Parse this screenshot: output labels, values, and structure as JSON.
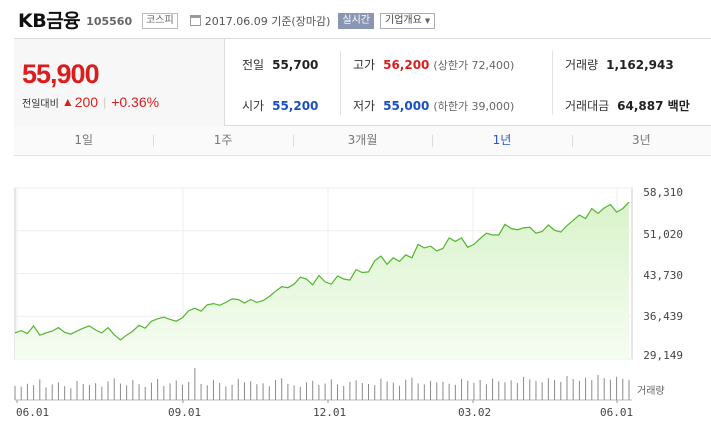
{
  "header": {
    "name": "KB금융",
    "code": "105560",
    "market": "코스피",
    "date": "2017.06.09 기준(장마감)",
    "realtime_btn": "실시간",
    "company_btn": "기업개요"
  },
  "price": {
    "current": "55,900",
    "change_label": "전일대비",
    "change": "200",
    "change_pct": "+0.36%"
  },
  "stats": {
    "prev_close_label": "전일",
    "prev_close": "55,700",
    "high_label": "고가",
    "high": "56,200",
    "upper_limit": "(상한가 72,400)",
    "volume_label": "거래량",
    "volume": "1,162,943",
    "open_label": "시가",
    "open": "55,200",
    "low_label": "저가",
    "low": "55,000",
    "lower_limit": "(하한가 39,000)",
    "amount_label": "거래대금",
    "amount": "64,887 백만"
  },
  "tabs": [
    {
      "label": "1일",
      "active": false
    },
    {
      "label": "1주",
      "active": false
    },
    {
      "label": "3개월",
      "active": false
    },
    {
      "label": "1년",
      "active": true
    },
    {
      "label": "3년",
      "active": false
    }
  ],
  "chart_data": {
    "type": "area",
    "yticks": [
      "58,310",
      "51,020",
      "43,730",
      "36,439",
      "29,149"
    ],
    "ylim": [
      29149,
      58310
    ],
    "xticks": [
      "06.01",
      "09.01",
      "12.01",
      "03.02",
      "06.01"
    ],
    "volume_label": "거래량",
    "line_color": "#52b52d",
    "fill_color": "#e5f7dc",
    "series": [
      {
        "values": [
          33600,
          34000,
          33500,
          34800,
          33200,
          33600,
          33900,
          34500,
          33700,
          33400,
          33900,
          34400,
          34800,
          34100,
          33600,
          34500,
          33300,
          32400,
          33200,
          33900,
          34900,
          34400,
          35600,
          36000,
          36300,
          35900,
          35600,
          36200,
          37400,
          37800,
          37300,
          38400,
          38600,
          38300,
          38800,
          39400,
          39300,
          38700,
          39300,
          38800,
          39100,
          39800,
          40700,
          41500,
          41300,
          41900,
          43100,
          42800,
          41800,
          43400,
          42300,
          41900,
          43300,
          42800,
          42600,
          44400,
          43900,
          44000,
          45900,
          46700,
          45300,
          46400,
          45800,
          46900,
          46400,
          48700,
          48100,
          48400,
          47600,
          48000,
          49800,
          49200,
          49800,
          48200,
          48700,
          49700,
          50600,
          50300,
          50300,
          52100,
          51400,
          51200,
          51500,
          51600,
          50600,
          50900,
          52000,
          51100,
          50800,
          51900,
          52800,
          53700,
          53100,
          54800,
          54000,
          54900,
          55500,
          54200,
          54800,
          55900
        ]
      }
    ],
    "volume": [
      62,
      58,
      71,
      65,
      90,
      55,
      68,
      77,
      60,
      52,
      83,
      70,
      66,
      74,
      58,
      81,
      95,
      72,
      64,
      88,
      69,
      57,
      76,
      92,
      61,
      73,
      85,
      67,
      79,
      140,
      70,
      64,
      88,
      75,
      59,
      66,
      91,
      78,
      82,
      69,
      73,
      60,
      87,
      95,
      71,
      64,
      58,
      77,
      84,
      66,
      72,
      90,
      68,
      61,
      79,
      86,
      74,
      70,
      65,
      93,
      81,
      76,
      62,
      89,
      97,
      73,
      68,
      84,
      77,
      80,
      71,
      66,
      92,
      85,
      75,
      88,
      69,
      94,
      82,
      78,
      86,
      74,
      101,
      90,
      83,
      77,
      95,
      88,
      79,
      105,
      92,
      84,
      98,
      87,
      110,
      96,
      89,
      102,
      93,
      88
    ]
  }
}
